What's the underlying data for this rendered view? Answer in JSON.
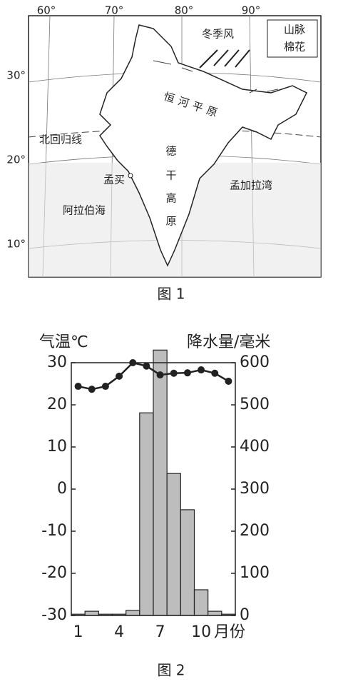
{
  "map": {
    "longitudes": [
      "60°",
      "70°",
      "80°",
      "90°"
    ],
    "latitudes": [
      "30°",
      "20°",
      "10°"
    ],
    "monsoon": "冬季风",
    "legend": [
      "山脉",
      "棉花"
    ],
    "ganges_plain": "恒河平原",
    "tropic": "北回归线",
    "deccan": [
      "德",
      "干",
      "高",
      "原"
    ],
    "mumbai": "孟买",
    "bay_of_bengal": "孟加拉湾",
    "arabian_sea": "阿拉伯海",
    "caption": "图 1"
  },
  "chart_data": {
    "type": "bar",
    "caption": "图 2",
    "categories": [
      "1",
      null,
      null,
      "4",
      null,
      null,
      "7",
      null,
      null,
      "10",
      null,
      null
    ],
    "xlabel": "月份",
    "ylabel": "气温℃",
    "y2label": "降水量/毫米",
    "ylim": [
      -30,
      30
    ],
    "yticks": [
      -30,
      -20,
      -10,
      0,
      10,
      20,
      30
    ],
    "y2lim": [
      0,
      600
    ],
    "y2ticks": [
      0,
      100,
      200,
      300,
      400,
      500,
      600
    ],
    "series": [
      {
        "type": "line",
        "color": "#222222",
        "values": [
          24.4,
          23.7,
          24.4,
          26.8,
          30.0,
          29.2,
          27.1,
          27.5,
          27.6,
          28.3,
          27.5,
          25.6
        ]
      },
      {
        "type": "bar",
        "axis": "y2",
        "color": "#bdbdbd",
        "values": [
          3,
          10,
          3,
          3,
          12,
          481,
          630,
          337,
          251,
          61,
          10,
          3
        ]
      }
    ]
  }
}
